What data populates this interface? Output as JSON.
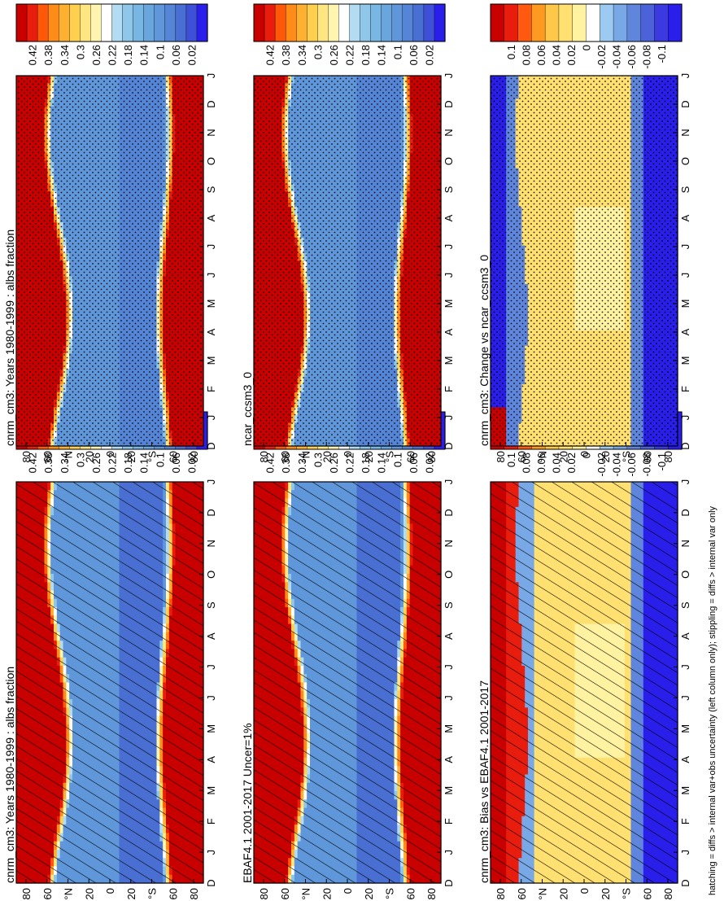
{
  "footnote": "hatching = diffs > internal var+obs uncertainty (left column only); stippling = diffs > internal var only",
  "colors": {
    "abs_ramp": [
      "#2a1eea",
      "#3e4fd8",
      "#4a6fd2",
      "#5585d6",
      "#5f97da",
      "#6aa6de",
      "#78b6e4",
      "#8fc7ea",
      "#b3dcf3",
      "#ffffff",
      "#fff5b0",
      "#ffe680",
      "#ffd050",
      "#ffb030",
      "#ff8c18",
      "#ff5808",
      "#e81d0e",
      "#c80000"
    ],
    "diff_ramp": [
      "#2a1eea",
      "#3a3ae0",
      "#4b62d8",
      "#5f86dc",
      "#78a8e6",
      "#9ccaf2",
      "#ffffff",
      "#fff2a0",
      "#ffe070",
      "#ffc848",
      "#ff9a20",
      "#ff5a10",
      "#e81d0e",
      "#c80000"
    ]
  },
  "charts": [
    {
      "title": "cnrm_cm3: Years 1980-1999 : albs fraction",
      "type": "heatmap",
      "kind": "abs",
      "overlay": "hatching",
      "x_ticks": [
        "D",
        "J",
        "F",
        "M",
        "A",
        "M",
        "J",
        "J",
        "A",
        "S",
        "O",
        "N",
        "D",
        "J"
      ],
      "y_ticks": [
        "80",
        "60",
        "°N",
        "20",
        "0",
        "20",
        "°S",
        "60",
        "80"
      ],
      "colorbar_labels": [
        "0.42",
        "0.38",
        "0.34",
        "0.3",
        "0.26",
        "0.22",
        "0.18",
        "0.14",
        "0.1",
        "0.06",
        "0.02"
      ]
    },
    {
      "title": "cnrm_cm3: Years 1980-1999 : albs fraction",
      "type": "heatmap",
      "kind": "abs",
      "overlay": "stippling",
      "x_ticks": [
        "D",
        "J",
        "F",
        "M",
        "A",
        "M",
        "J",
        "J",
        "A",
        "S",
        "O",
        "N",
        "D",
        "J"
      ],
      "y_ticks": [
        "80",
        "60",
        "°N",
        "20",
        "0",
        "20",
        "°S",
        "60",
        "80"
      ],
      "colorbar_labels": [
        "0.42",
        "0.38",
        "0.34",
        "0.3",
        "0.26",
        "0.22",
        "0.18",
        "0.14",
        "0.1",
        "0.06",
        "0.02"
      ]
    },
    {
      "title": "EBAF4.1 2001-2017 Uncer=1%",
      "type": "heatmap",
      "kind": "abs",
      "overlay": "hatching",
      "x_ticks": [
        "D",
        "J",
        "F",
        "M",
        "A",
        "M",
        "J",
        "J",
        "A",
        "S",
        "O",
        "N",
        "D",
        "J"
      ],
      "y_ticks": [
        "80",
        "60",
        "°N",
        "20",
        "0",
        "20",
        "°S",
        "60",
        "80"
      ],
      "colorbar_labels": [
        "0.42",
        "0.38",
        "0.34",
        "0.3",
        "0.26",
        "0.22",
        "0.18",
        "0.14",
        "0.1",
        "0.06",
        "0.02"
      ]
    },
    {
      "title": "ncar_ccsm3_0",
      "type": "heatmap",
      "kind": "abs",
      "overlay": "stippling",
      "x_ticks": [
        "D",
        "J",
        "F",
        "M",
        "A",
        "M",
        "J",
        "J",
        "A",
        "S",
        "O",
        "N",
        "D",
        "J"
      ],
      "y_ticks": [
        "80",
        "60",
        "°N",
        "20",
        "0",
        "20",
        "°S",
        "60",
        "80"
      ],
      "colorbar_labels": [
        "0.42",
        "0.38",
        "0.34",
        "0.3",
        "0.26",
        "0.22",
        "0.18",
        "0.14",
        "0.1",
        "0.06",
        "0.02"
      ]
    },
    {
      "title": "cnrm_cm3: Bias vs EBAF4.1 2001-2017",
      "type": "heatmap",
      "kind": "diff",
      "overlay": "hatching",
      "x_ticks": [
        "D",
        "J",
        "F",
        "M",
        "A",
        "M",
        "J",
        "J",
        "A",
        "S",
        "O",
        "N",
        "D",
        "J"
      ],
      "y_ticks": [
        "80",
        "60",
        "°N",
        "20",
        "0",
        "20",
        "°S",
        "60",
        "80"
      ],
      "colorbar_labels": [
        "0.1",
        "0.08",
        "0.06",
        "0.04",
        "0.02",
        "0",
        "-0.02",
        "-0.04",
        "-0.06",
        "-0.08",
        "-0.1"
      ]
    },
    {
      "title": "cnrm_cm3: Change vs ncar_ccsm3_0",
      "type": "heatmap",
      "kind": "diff",
      "overlay": "stippling",
      "x_ticks": [
        "D",
        "J",
        "F",
        "M",
        "A",
        "M",
        "J",
        "J",
        "A",
        "S",
        "O",
        "N",
        "D",
        "J"
      ],
      "y_ticks": [
        "80",
        "60",
        "°N",
        "20",
        "0",
        "20",
        "°S",
        "60",
        "80"
      ],
      "colorbar_labels": [
        "0.1",
        "0.08",
        "0.06",
        "0.04",
        "0.02",
        "0",
        "-0.02",
        "-0.04",
        "-0.06",
        "-0.08",
        "-0.1"
      ]
    }
  ]
}
